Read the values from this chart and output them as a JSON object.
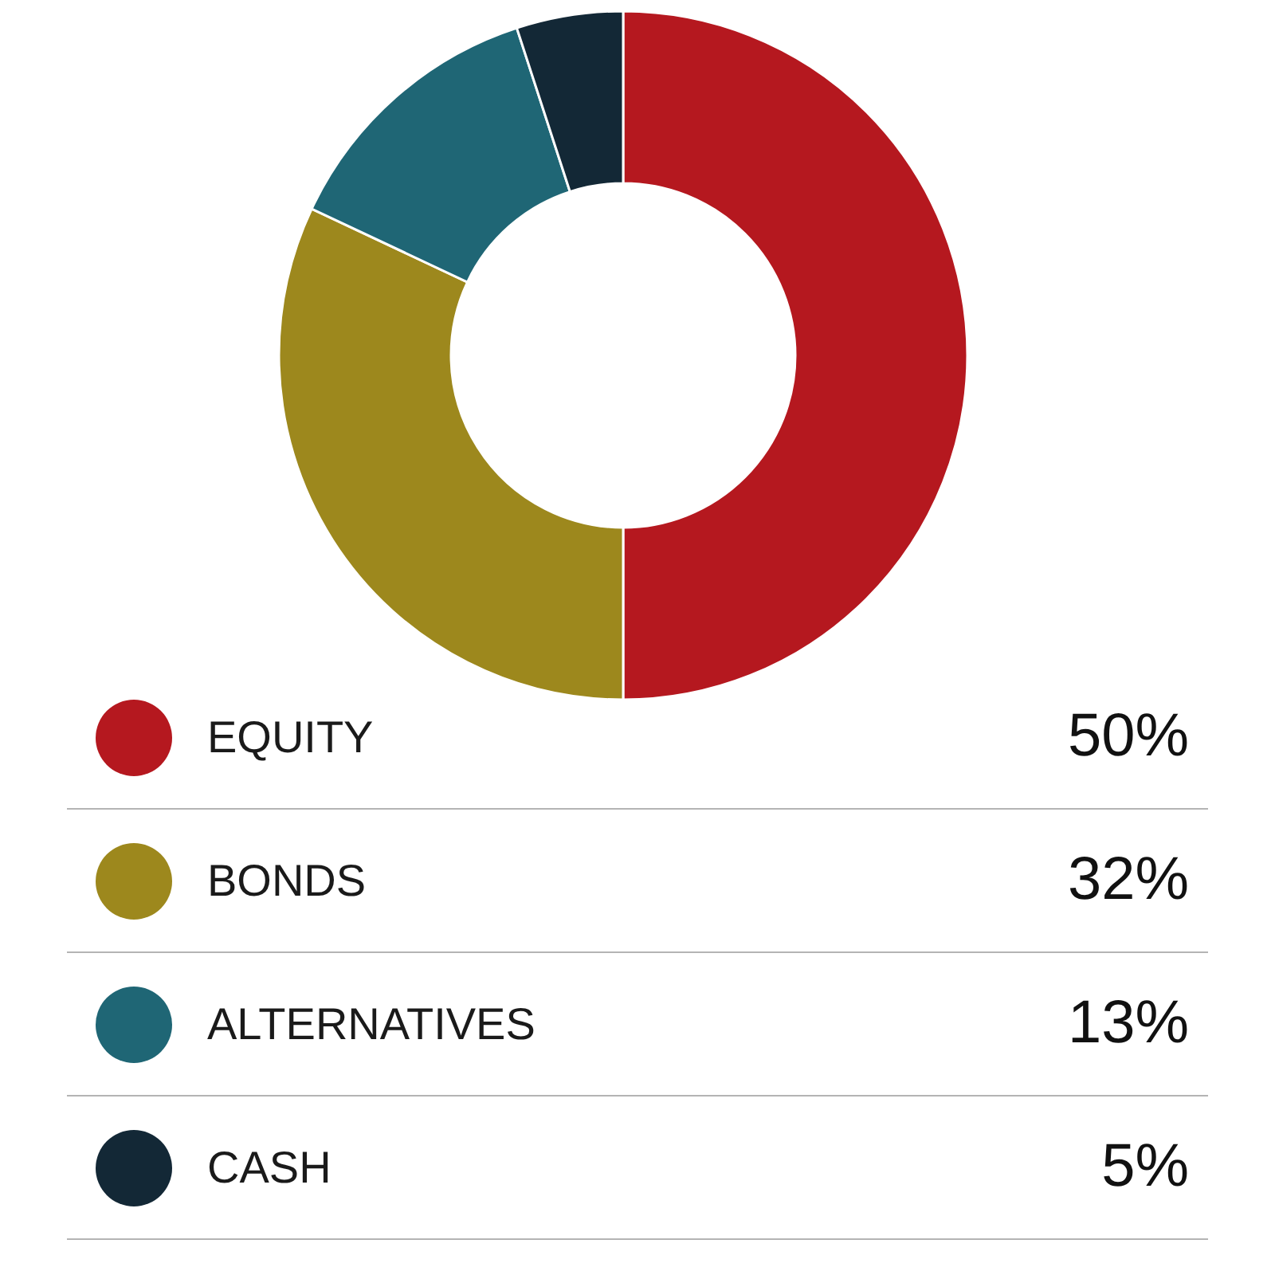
{
  "chart_data": {
    "type": "donut",
    "categories": [
      "EQUITY",
      "BONDS",
      "ALTERNATIVES",
      "CASH"
    ],
    "values": [
      50,
      32,
      13,
      5
    ],
    "value_labels": [
      "50%",
      "32%",
      "13%",
      "5%"
    ],
    "colors": [
      "#b5181f",
      "#9d881d",
      "#1f6675",
      "#132836"
    ],
    "legend": "bottom"
  }
}
